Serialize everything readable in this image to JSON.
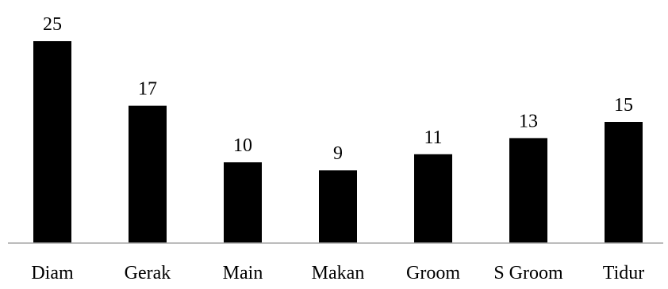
{
  "chart_data": {
    "type": "bar",
    "categories": [
      "Diam",
      "Gerak",
      "Main",
      "Makan",
      "Groom",
      "S Groom",
      "Tidur"
    ],
    "values": [
      25,
      17,
      10,
      9,
      11,
      13,
      15
    ],
    "title": "",
    "xlabel": "",
    "ylabel": "",
    "ylim": [
      0,
      25
    ],
    "grid": false,
    "legend": "none",
    "bar_color": "#000000",
    "axis_color": "#a6a6a6"
  }
}
